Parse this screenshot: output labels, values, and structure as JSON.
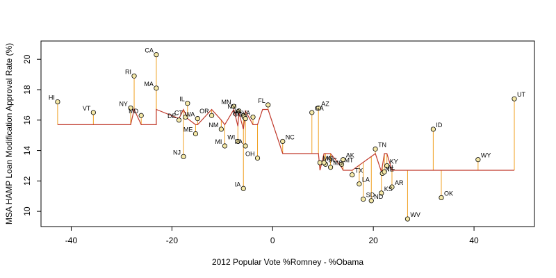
{
  "chart_data": {
    "type": "scatter",
    "title": "",
    "xlabel": "2012 Popular Vote %Romney - %Obama",
    "ylabel": "MSA HAMP Loan Modification Approval Rate (%)",
    "xlim": [
      -46,
      52
    ],
    "ylim": [
      9.0,
      21.2
    ],
    "xticks": [
      -40,
      -20,
      0,
      20,
      40
    ],
    "yticks": [
      10,
      12,
      14,
      16,
      18,
      20
    ],
    "grid": false,
    "colors": {
      "point_fill": "#f5e9a8",
      "point_stroke": "#000000",
      "stem": "#f0a020",
      "fit_line": "#c0392b"
    },
    "points": [
      {
        "label": "HI",
        "x": -42.7,
        "y": 17.2
      },
      {
        "label": "VT",
        "x": -35.6,
        "y": 16.5
      },
      {
        "label": "NY",
        "x": -28.2,
        "y": 16.8
      },
      {
        "label": "MD",
        "x": -26.1,
        "y": 16.3
      },
      {
        "label": "RI",
        "x": -27.5,
        "y": 18.9
      },
      {
        "label": "CA",
        "x": -23.1,
        "y": 20.3
      },
      {
        "label": "MA",
        "x": -23.1,
        "y": 18.1
      },
      {
        "label": "DE",
        "x": -18.6,
        "y": 16.0
      },
      {
        "label": "CT",
        "x": -17.3,
        "y": 16.2
      },
      {
        "label": "IL",
        "x": -16.9,
        "y": 17.1
      },
      {
        "label": "WA",
        "x": -14.9,
        "y": 16.1
      },
      {
        "label": "ME",
        "x": -15.3,
        "y": 15.1
      },
      {
        "label": "NJ",
        "x": -17.7,
        "y": 13.6
      },
      {
        "label": "OR",
        "x": -12.1,
        "y": 16.3
      },
      {
        "label": "NM",
        "x": -10.2,
        "y": 15.4
      },
      {
        "label": "MI",
        "x": -9.5,
        "y": 14.3
      },
      {
        "label": "MN",
        "x": -7.7,
        "y": 16.9
      },
      {
        "label": "NV",
        "x": -6.7,
        "y": 16.6
      },
      {
        "label": "IA",
        "x": -5.8,
        "y": 16.3
      },
      {
        "label": "WI",
        "x": -6.9,
        "y": 14.6
      },
      {
        "label": "PA",
        "x": -5.4,
        "y": 14.3
      },
      {
        "label": "NH",
        "x": -5.6,
        "y": 16.2
      },
      {
        "label": "CO",
        "x": -5.4,
        "y": 16.1
      },
      {
        "label": "VA",
        "x": -3.9,
        "y": 16.2
      },
      {
        "label": "OH",
        "x": -3.0,
        "y": 13.5
      },
      {
        "label": "IA",
        "x": -5.8,
        "y": 11.5
      },
      {
        "label": "FL",
        "x": -0.9,
        "y": 17.0
      },
      {
        "label": "NC",
        "x": 2.0,
        "y": 14.6
      },
      {
        "label": "GA",
        "x": 7.8,
        "y": 16.5
      },
      {
        "label": "AZ",
        "x": 9.1,
        "y": 16.8
      },
      {
        "label": "MO",
        "x": 9.4,
        "y": 13.2
      },
      {
        "label": "SC",
        "x": 10.5,
        "y": 13.1
      },
      {
        "label": "IN",
        "x": 10.2,
        "y": 13.2
      },
      {
        "label": "MS",
        "x": 11.5,
        "y": 12.9
      },
      {
        "label": "AK",
        "x": 14.0,
        "y": 13.4
      },
      {
        "label": "MT",
        "x": 13.7,
        "y": 13.1
      },
      {
        "label": "TX",
        "x": 15.8,
        "y": 12.4
      },
      {
        "label": "LA",
        "x": 17.2,
        "y": 11.8
      },
      {
        "label": "SD",
        "x": 18.0,
        "y": 10.8
      },
      {
        "label": "ND",
        "x": 19.6,
        "y": 10.7
      },
      {
        "label": "TN",
        "x": 20.4,
        "y": 14.1
      },
      {
        "label": "KY",
        "x": 22.7,
        "y": 13.0
      },
      {
        "label": "NE",
        "x": 21.8,
        "y": 12.5
      },
      {
        "label": "AL",
        "x": 22.2,
        "y": 12.6
      },
      {
        "label": "KS",
        "x": 21.6,
        "y": 11.2
      },
      {
        "label": "AR",
        "x": 23.7,
        "y": 11.6
      },
      {
        "label": "WV",
        "x": 26.8,
        "y": 9.5
      },
      {
        "label": "ID",
        "x": 31.9,
        "y": 15.4
      },
      {
        "label": "OK",
        "x": 33.5,
        "y": 10.9
      },
      {
        "label": "WY",
        "x": 40.8,
        "y": 13.4
      },
      {
        "label": "UT",
        "x": 48.0,
        "y": 17.4
      }
    ],
    "fit_line": [
      [
        -42.7,
        15.7
      ],
      [
        -28.2,
        15.7
      ],
      [
        -27.5,
        16.7
      ],
      [
        -26.1,
        15.7
      ],
      [
        -23.1,
        15.7
      ],
      [
        -23.1,
        16.7
      ],
      [
        -18.6,
        16.1
      ],
      [
        -17.7,
        16.7
      ],
      [
        -16.9,
        16.1
      ],
      [
        -15.3,
        15.7
      ],
      [
        -14.9,
        15.7
      ],
      [
        -12.1,
        16.7
      ],
      [
        -10.2,
        16.0
      ],
      [
        -9.5,
        15.7
      ],
      [
        -7.7,
        16.7
      ],
      [
        -6.9,
        15.6
      ],
      [
        -6.7,
        16.5
      ],
      [
        -5.8,
        15.4
      ],
      [
        -5.4,
        16.6
      ],
      [
        -3.9,
        15.7
      ],
      [
        -3.0,
        15.7
      ],
      [
        -2.0,
        16.7
      ],
      [
        -0.9,
        16.7
      ],
      [
        2.0,
        13.8
      ],
      [
        7.8,
        13.8
      ],
      [
        9.1,
        13.8
      ],
      [
        9.4,
        12.7
      ],
      [
        10.2,
        13.8
      ],
      [
        11.5,
        13.8
      ],
      [
        13.7,
        12.9
      ],
      [
        14.0,
        12.7
      ],
      [
        15.8,
        12.7
      ],
      [
        20.4,
        13.8
      ],
      [
        21.6,
        12.6
      ],
      [
        22.2,
        13.8
      ],
      [
        22.7,
        13.8
      ],
      [
        23.7,
        12.7
      ],
      [
        48.0,
        12.7
      ]
    ]
  }
}
